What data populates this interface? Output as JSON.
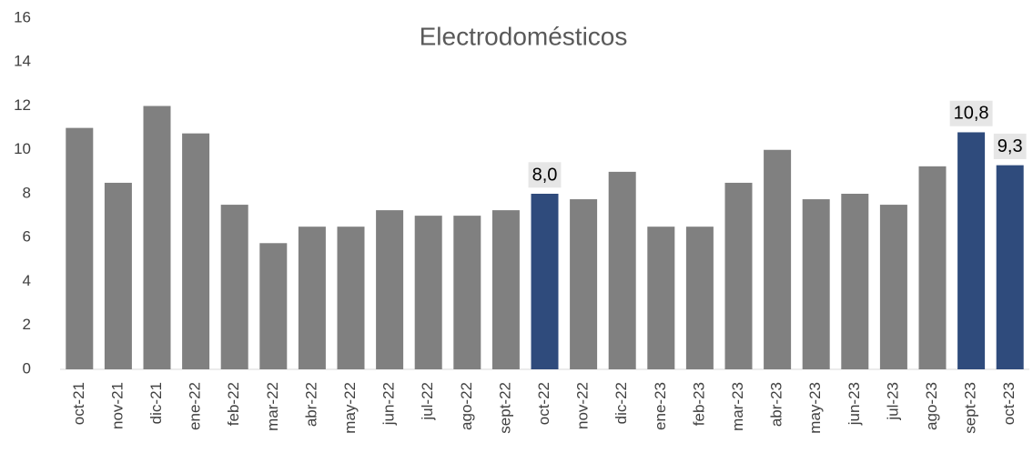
{
  "chart_data": {
    "type": "bar",
    "title": "Electrodomésticos",
    "categories": [
      "oct-21",
      "nov-21",
      "dic-21",
      "ene-22",
      "feb-22",
      "mar-22",
      "abr-22",
      "may-22",
      "jun-22",
      "jul-22",
      "ago-22",
      "sept-22",
      "oct-22",
      "nov-22",
      "dic-22",
      "ene-23",
      "feb-23",
      "mar-23",
      "abr-23",
      "may-23",
      "jun-23",
      "jul-23",
      "ago-23",
      "sept-23",
      "oct-23"
    ],
    "values": [
      11,
      8.5,
      12,
      10.75,
      7.5,
      5.75,
      6.5,
      6.5,
      7.25,
      7,
      7,
      7.25,
      8.0,
      7.75,
      9,
      6.5,
      6.5,
      8.5,
      10,
      7.75,
      8,
      7.5,
      9.25,
      10.8,
      9.3
    ],
    "value_labels": [
      null,
      null,
      null,
      null,
      null,
      null,
      null,
      null,
      null,
      null,
      null,
      null,
      "8,0",
      null,
      null,
      null,
      null,
      null,
      null,
      null,
      null,
      null,
      null,
      "10,8",
      "9,3"
    ],
    "colors": [
      "#808080",
      "#808080",
      "#808080",
      "#808080",
      "#808080",
      "#808080",
      "#808080",
      "#808080",
      "#808080",
      "#808080",
      "#808080",
      "#808080",
      "#2f4b7c",
      "#808080",
      "#808080",
      "#808080",
      "#808080",
      "#808080",
      "#808080",
      "#808080",
      "#808080",
      "#808080",
      "#808080",
      "#2f4b7c",
      "#2f4b7c"
    ],
    "ylim": [
      0,
      16
    ],
    "yticks": [
      0,
      2,
      4,
      6,
      8,
      10,
      12,
      14,
      16
    ],
    "grid": false
  }
}
